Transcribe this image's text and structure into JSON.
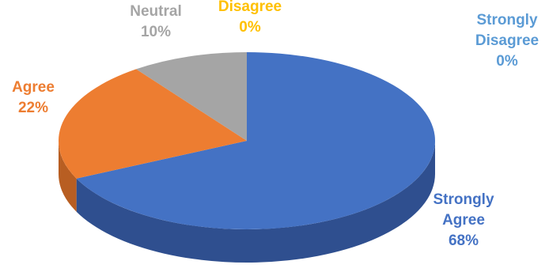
{
  "chart_data": {
    "type": "pie",
    "style": "3d",
    "categories": [
      "Strongly Agree",
      "Agree",
      "Neutral",
      "Disagree",
      "Strongly Disagree"
    ],
    "values": [
      68,
      22,
      10,
      0,
      0
    ],
    "unit": "%",
    "data_labels": [
      {
        "lines": [
          "Strongly",
          "Agree",
          "68%"
        ],
        "color": "#4472C4"
      },
      {
        "lines": [
          "Agree",
          "22%"
        ],
        "color": "#ED7D31"
      },
      {
        "lines": [
          "Neutral",
          "10%"
        ],
        "color": "#A5A5A5"
      },
      {
        "lines": [
          "Disagree",
          "0%"
        ],
        "color": "#FFC000"
      },
      {
        "lines": [
          "Strongly",
          "Disagree",
          "0%"
        ],
        "color": "#5B9BD5"
      }
    ],
    "colors": {
      "Strongly Agree": {
        "top": "#4472C4",
        "side": "#2F4F8F"
      },
      "Agree": {
        "top": "#ED7D31",
        "side": "#B85E22"
      },
      "Neutral": {
        "top": "#A5A5A5",
        "side": "#7A7A7A"
      },
      "Disagree": {
        "top": "#FFC000",
        "side": "#C29200"
      },
      "Strongly Disagree": {
        "top": "#5B9BD5",
        "side": "#3E74A6"
      }
    },
    "legend": "none",
    "title": ""
  }
}
